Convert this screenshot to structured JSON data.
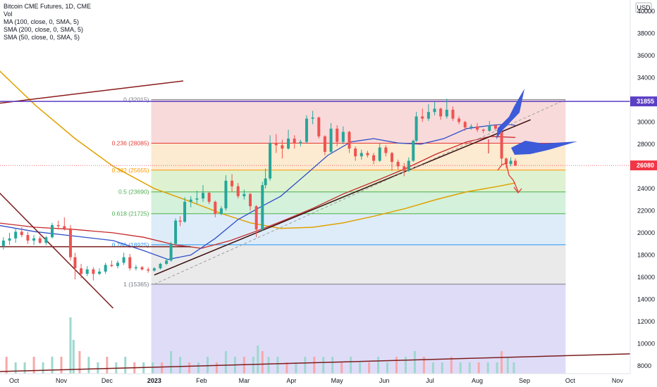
{
  "chart_data": {
    "type": "candlestick",
    "title": "Bitcoin CME Futures, 1D, CME",
    "legend": [
      "Vol",
      "MA (100, close, 0, SMA, 5)",
      "SMA (200, close, 0, SMA, 5)",
      "SMA (50, close, 0, SMA, 5)"
    ],
    "currency": "USD",
    "y_ticks": [
      8000,
      10000,
      12000,
      14000,
      16000,
      18000,
      20000,
      22000,
      24000,
      26000,
      28000,
      30000,
      32000,
      34000,
      36000,
      38000,
      40000
    ],
    "ylim": [
      7300,
      41000
    ],
    "x_ticks": [
      {
        "label": "Oct",
        "date": "2022-10-01"
      },
      {
        "label": "Nov",
        "date": "2022-11-01"
      },
      {
        "label": "Dec",
        "date": "2022-12-01"
      },
      {
        "label": "2023",
        "date": "2023-01-01",
        "bold": true
      },
      {
        "label": "Feb",
        "date": "2023-02-01"
      },
      {
        "label": "Mar",
        "date": "2023-03-01"
      },
      {
        "label": "Apr",
        "date": "2023-04-01"
      },
      {
        "label": "May",
        "date": "2023-05-01"
      },
      {
        "label": "Jun",
        "date": "2023-06-01"
      },
      {
        "label": "Jul",
        "date": "2023-07-01"
      },
      {
        "label": "Aug",
        "date": "2023-08-01"
      },
      {
        "label": "Sep",
        "date": "2023-09-01"
      },
      {
        "label": "Oct",
        "date": "2023-10-01"
      },
      {
        "label": "Nov",
        "date": "2023-11-01"
      }
    ],
    "price_labels": [
      {
        "value": 31855,
        "text": "31855",
        "color": "#5b3fc4"
      },
      {
        "value": 26080,
        "text": "26080",
        "color": "#f23645"
      }
    ],
    "fib_retracement": {
      "start": "2022-12-30",
      "end": "2023-09-28",
      "levels": [
        {
          "ratio": "0",
          "price": 32015,
          "label": "0 (32015)",
          "color": "#787b86",
          "fill": "#f7d4d4"
        },
        {
          "ratio": "0.236",
          "price": 28085,
          "label": "0.236 (28085)",
          "color": "#e53935",
          "fill": "#fce8c8"
        },
        {
          "ratio": "0.382",
          "price": 25655,
          "label": "0.382 (25655)",
          "color": "#ff9800",
          "fill": "#d8f0c9"
        },
        {
          "ratio": "0.5",
          "price": 23690,
          "label": "0.5 (23690)",
          "color": "#4caf50",
          "fill": "#cdeed5"
        },
        {
          "ratio": "0.618",
          "price": 21725,
          "label": "0.618 (21725)",
          "color": "#4caf50",
          "fill": "#d8e9f8"
        },
        {
          "ratio": "0.786",
          "price": 18925,
          "label": "0.786 (18925)",
          "color": "#2196f3",
          "fill": "#e6e6e6"
        },
        {
          "ratio": "1",
          "price": 15365,
          "label": "1 (15365)",
          "color": "#787b86",
          "fill": "#d9d6f7"
        }
      ]
    },
    "candles": [
      [
        "2022-09-20",
        19000,
        19500,
        18200,
        18800
      ],
      [
        "2022-09-24",
        18800,
        19600,
        18500,
        19300
      ],
      [
        "2022-09-28",
        19300,
        20000,
        18900,
        19500
      ],
      [
        "2022-10-02",
        19500,
        20400,
        19100,
        20100
      ],
      [
        "2022-10-06",
        20100,
        20500,
        19600,
        19800
      ],
      [
        "2022-10-10",
        19800,
        20100,
        19000,
        19300
      ],
      [
        "2022-10-14",
        19300,
        19800,
        18900,
        19500
      ],
      [
        "2022-10-18",
        19500,
        19700,
        19000,
        19100
      ],
      [
        "2022-10-22",
        19100,
        19700,
        18900,
        19600
      ],
      [
        "2022-10-26",
        19600,
        20900,
        19500,
        20700
      ],
      [
        "2022-10-30",
        20700,
        21100,
        20300,
        20600
      ],
      [
        "2022-11-03",
        20600,
        21400,
        20200,
        20400
      ],
      [
        "2022-11-07",
        20400,
        20700,
        17500,
        17800
      ],
      [
        "2022-11-10",
        17800,
        18200,
        15800,
        16800
      ],
      [
        "2022-11-14",
        16800,
        17200,
        15900,
        16300
      ],
      [
        "2022-11-18",
        16300,
        17000,
        16100,
        16700
      ],
      [
        "2022-11-22",
        16700,
        16900,
        15700,
        16300
      ],
      [
        "2022-11-26",
        16300,
        16800,
        16200,
        16500
      ],
      [
        "2022-11-30",
        16500,
        17300,
        16300,
        17100
      ],
      [
        "2022-12-04",
        17100,
        17500,
        16900,
        17000
      ],
      [
        "2022-12-08",
        17000,
        17500,
        16800,
        17300
      ],
      [
        "2022-12-12",
        17300,
        18200,
        17100,
        17800
      ],
      [
        "2022-12-16",
        17800,
        18100,
        16600,
        16800
      ],
      [
        "2022-12-20",
        16800,
        17100,
        16600,
        16900
      ],
      [
        "2022-12-24",
        16900,
        17000,
        16600,
        16700
      ],
      [
        "2022-12-28",
        16700,
        16900,
        16400,
        16600
      ],
      [
        "2023-01-01",
        16600,
        16900,
        16500,
        16800
      ],
      [
        "2023-01-05",
        16800,
        17300,
        16700,
        17200
      ],
      [
        "2023-01-09",
        17200,
        17700,
        17100,
        17500
      ],
      [
        "2023-01-12",
        17500,
        19200,
        17400,
        19000
      ],
      [
        "2023-01-15",
        19000,
        21300,
        18900,
        21100
      ],
      [
        "2023-01-18",
        21100,
        21500,
        20600,
        21000
      ],
      [
        "2023-01-21",
        21000,
        23200,
        20900,
        22800
      ],
      [
        "2023-01-25",
        22800,
        23300,
        22300,
        23000
      ],
      [
        "2023-01-29",
        23000,
        23800,
        22600,
        23100
      ],
      [
        "2023-02-02",
        23100,
        24300,
        22800,
        23600
      ],
      [
        "2023-02-06",
        23600,
        23700,
        22600,
        22800
      ],
      [
        "2023-02-10",
        22800,
        22900,
        21400,
        21700
      ],
      [
        "2023-02-14",
        21700,
        22400,
        21600,
        22200
      ],
      [
        "2023-02-17",
        22200,
        25200,
        22000,
        24700
      ],
      [
        "2023-02-21",
        24700,
        25300,
        23700,
        24200
      ],
      [
        "2023-02-25",
        24200,
        24500,
        23100,
        23300
      ],
      [
        "2023-03-01",
        23300,
        23900,
        23000,
        23500
      ],
      [
        "2023-03-05",
        23500,
        23600,
        22000,
        22400
      ],
      [
        "2023-03-09",
        22400,
        22500,
        19600,
        20300
      ],
      [
        "2023-03-13",
        20300,
        24600,
        20200,
        24300
      ],
      [
        "2023-03-15",
        24300,
        25800,
        24000,
        24900
      ],
      [
        "2023-03-18",
        24900,
        28800,
        24700,
        28100
      ],
      [
        "2023-03-22",
        28100,
        28900,
        27200,
        27900
      ],
      [
        "2023-03-26",
        27900,
        28400,
        26700,
        27600
      ],
      [
        "2023-03-30",
        27600,
        29300,
        27500,
        28500
      ],
      [
        "2023-04-03",
        28500,
        28800,
        27600,
        28100
      ],
      [
        "2023-04-07",
        28100,
        28400,
        27800,
        28200
      ],
      [
        "2023-04-11",
        28200,
        30600,
        28100,
        30300
      ],
      [
        "2023-04-15",
        30300,
        31000,
        29800,
        30400
      ],
      [
        "2023-04-19",
        30400,
        30500,
        28500,
        28700
      ],
      [
        "2023-04-23",
        28700,
        28800,
        27000,
        27300
      ],
      [
        "2023-04-27",
        27300,
        29900,
        27100,
        29400
      ],
      [
        "2023-05-01",
        29400,
        29700,
        27800,
        28200
      ],
      [
        "2023-05-05",
        28200,
        29600,
        28000,
        29100
      ],
      [
        "2023-05-09",
        29100,
        29200,
        27200,
        27600
      ],
      [
        "2023-05-13",
        27600,
        27800,
        26500,
        26900
      ],
      [
        "2023-05-17",
        26900,
        27500,
        26600,
        27200
      ],
      [
        "2023-05-21",
        27200,
        27400,
        26800,
        27000
      ],
      [
        "2023-05-25",
        27000,
        27200,
        26200,
        26500
      ],
      [
        "2023-05-29",
        26500,
        28100,
        26400,
        27700
      ],
      [
        "2023-06-02",
        27700,
        27900,
        26900,
        27200
      ],
      [
        "2023-06-06",
        27200,
        27300,
        25600,
        26400
      ],
      [
        "2023-06-10",
        26400,
        26600,
        25700,
        26000
      ],
      [
        "2023-06-14",
        26000,
        26300,
        25100,
        25600
      ],
      [
        "2023-06-17",
        25600,
        26800,
        25500,
        26500
      ],
      [
        "2023-06-20",
        26500,
        28400,
        26400,
        28300
      ],
      [
        "2023-06-22",
        28300,
        30900,
        28200,
        30500
      ],
      [
        "2023-06-26",
        30500,
        31200,
        30000,
        30300
      ],
      [
        "2023-06-30",
        30300,
        31600,
        30100,
        30900
      ],
      [
        "2023-07-04",
        30900,
        31800,
        30600,
        31200
      ],
      [
        "2023-07-08",
        31200,
        31300,
        30200,
        30500
      ],
      [
        "2023-07-12",
        30500,
        32100,
        30300,
        31100
      ],
      [
        "2023-07-16",
        31100,
        31400,
        30100,
        30300
      ],
      [
        "2023-07-20",
        30300,
        30500,
        29800,
        30000
      ],
      [
        "2023-07-24",
        30000,
        30100,
        29200,
        29500
      ],
      [
        "2023-07-28",
        29500,
        29800,
        29300,
        29600
      ],
      [
        "2023-08-01",
        29600,
        29900,
        29100,
        29300
      ],
      [
        "2023-08-05",
        29300,
        29400,
        29000,
        29200
      ],
      [
        "2023-08-09",
        29200,
        30100,
        29100,
        29700
      ],
      [
        "2023-08-13",
        29700,
        29800,
        29200,
        29400
      ],
      [
        "2023-08-16",
        29400,
        29500,
        28900,
        29100
      ],
      [
        "2023-08-17",
        29100,
        29200,
        26000,
        26700
      ],
      [
        "2023-08-20",
        26700,
        26800,
        25800,
        26200
      ],
      [
        "2023-08-23",
        26200,
        26800,
        26000,
        26500
      ],
      [
        "2023-08-26",
        26500,
        26700,
        26000,
        26080
      ]
    ],
    "sma50": [
      [
        "2022-09-20",
        20700
      ],
      [
        "2022-10-15",
        20100
      ],
      [
        "2022-11-10",
        19700
      ],
      [
        "2022-12-05",
        19300
      ],
      [
        "2022-12-25",
        18400
      ],
      [
        "2023-01-10",
        17600
      ],
      [
        "2023-01-25",
        18000
      ],
      [
        "2023-02-10",
        19500
      ],
      [
        "2023-02-25",
        21200
      ],
      [
        "2023-03-10",
        22200
      ],
      [
        "2023-03-25",
        23300
      ],
      [
        "2023-04-10",
        25200
      ],
      [
        "2023-04-25",
        27000
      ],
      [
        "2023-05-10",
        28200
      ],
      [
        "2023-05-25",
        28500
      ],
      [
        "2023-06-10",
        28100
      ],
      [
        "2023-06-25",
        28000
      ],
      [
        "2023-07-10",
        28500
      ],
      [
        "2023-07-25",
        29400
      ],
      [
        "2023-08-10",
        29700
      ],
      [
        "2023-08-20",
        29800
      ],
      [
        "2023-08-26",
        29700
      ]
    ],
    "ma100": [
      [
        "2022-09-20",
        20900
      ],
      [
        "2022-10-15",
        20500
      ],
      [
        "2022-11-10",
        20300
      ],
      [
        "2022-12-05",
        20000
      ],
      [
        "2022-12-25",
        19600
      ],
      [
        "2023-01-15",
        18900
      ],
      [
        "2023-02-01",
        18600
      ],
      [
        "2023-02-20",
        19300
      ],
      [
        "2023-03-10",
        20200
      ],
      [
        "2023-03-25",
        21000
      ],
      [
        "2023-04-15",
        22200
      ],
      [
        "2023-05-05",
        23500
      ],
      [
        "2023-05-25",
        24600
      ],
      [
        "2023-06-15",
        25800
      ],
      [
        "2023-07-05",
        27100
      ],
      [
        "2023-07-25",
        28200
      ],
      [
        "2023-08-10",
        28700
      ],
      [
        "2023-08-26",
        28600
      ]
    ],
    "sma200": [
      [
        "2022-09-20",
        34800
      ],
      [
        "2022-10-15",
        31500
      ],
      [
        "2022-11-10",
        28500
      ],
      [
        "2022-12-05",
        26000
      ],
      [
        "2023-01-01",
        24000
      ],
      [
        "2023-01-25",
        22800
      ],
      [
        "2023-02-15",
        21700
      ],
      [
        "2023-03-05",
        20900
      ],
      [
        "2023-03-25",
        20400
      ],
      [
        "2023-04-15",
        20500
      ],
      [
        "2023-05-05",
        20900
      ],
      [
        "2023-05-25",
        21500
      ],
      [
        "2023-06-15",
        22200
      ],
      [
        "2023-07-05",
        23000
      ],
      [
        "2023-07-25",
        23700
      ],
      [
        "2023-08-15",
        24200
      ],
      [
        "2023-08-26",
        24500
      ]
    ],
    "volume": [
      [
        "2022-09-20",
        2
      ],
      [
        "2022-09-26",
        3
      ],
      [
        "2022-10-02",
        2
      ],
      [
        "2022-10-08",
        2
      ],
      [
        "2022-10-14",
        3
      ],
      [
        "2022-10-20",
        2
      ],
      [
        "2022-10-26",
        3
      ],
      [
        "2022-11-01",
        3
      ],
      [
        "2022-11-07",
        10
      ],
      [
        "2022-11-09",
        6
      ],
      [
        "2022-11-13",
        4
      ],
      [
        "2022-11-19",
        3
      ],
      [
        "2022-11-25",
        2
      ],
      [
        "2022-12-01",
        3
      ],
      [
        "2022-12-07",
        2
      ],
      [
        "2022-12-13",
        3
      ],
      [
        "2022-12-19",
        2
      ],
      [
        "2022-12-25",
        2
      ],
      [
        "2022-12-31",
        2
      ],
      [
        "2023-01-06",
        2
      ],
      [
        "2023-01-12",
        4
      ],
      [
        "2023-01-18",
        3
      ],
      [
        "2023-01-24",
        2
      ],
      [
        "2023-01-30",
        2
      ],
      [
        "2023-02-05",
        3
      ],
      [
        "2023-02-11",
        2
      ],
      [
        "2023-02-17",
        4
      ],
      [
        "2023-02-23",
        3
      ],
      [
        "2023-03-01",
        3
      ],
      [
        "2023-03-07",
        3
      ],
      [
        "2023-03-10",
        5
      ],
      [
        "2023-03-13",
        4
      ],
      [
        "2023-03-17",
        3
      ],
      [
        "2023-03-23",
        3
      ],
      [
        "2023-03-29",
        2
      ],
      [
        "2023-04-04",
        2
      ],
      [
        "2023-04-10",
        3
      ],
      [
        "2023-04-16",
        3
      ],
      [
        "2023-04-22",
        3
      ],
      [
        "2023-04-28",
        3
      ],
      [
        "2023-05-04",
        2
      ],
      [
        "2023-05-10",
        3
      ],
      [
        "2023-05-16",
        2
      ],
      [
        "2023-05-22",
        2
      ],
      [
        "2023-05-28",
        3
      ],
      [
        "2023-06-03",
        2
      ],
      [
        "2023-06-09",
        3
      ],
      [
        "2023-06-15",
        3
      ],
      [
        "2023-06-21",
        4
      ],
      [
        "2023-06-27",
        3
      ],
      [
        "2023-07-03",
        2
      ],
      [
        "2023-07-09",
        2
      ],
      [
        "2023-07-15",
        3
      ],
      [
        "2023-07-21",
        2
      ],
      [
        "2023-07-27",
        2
      ],
      [
        "2023-08-02",
        2
      ],
      [
        "2023-08-08",
        2
      ],
      [
        "2023-08-14",
        2
      ],
      [
        "2023-08-17",
        4
      ],
      [
        "2023-08-21",
        3
      ],
      [
        "2023-08-25",
        2
      ]
    ],
    "trendlines": [
      {
        "name": "support-trendline",
        "color": "#3a0d0d",
        "from": [
          "2023-01-01",
          16200
        ],
        "to": [
          "2023-09-05",
          30200
        ]
      },
      {
        "name": "projection-dashed",
        "color": "#9e9e9e",
        "dashed": true,
        "from": [
          "2023-01-01",
          15365
        ],
        "to": [
          "2023-09-28",
          32015
        ]
      },
      {
        "name": "descending-trendline",
        "color": "#7b1d1d",
        "from": [
          "2022-09-15",
          24500
        ],
        "to": [
          "2022-12-05",
          13200
        ]
      },
      {
        "name": "upper-left-trendline",
        "color": "#8b1a1a",
        "from": [
          "2022-09-10",
          31500
        ],
        "to": [
          "2023-01-20",
          33700
        ]
      },
      {
        "name": "horizontal-resistance",
        "color": "#7b1d1d",
        "from": [
          "2022-09-10",
          18750
        ],
        "to": [
          "2023-01-25",
          18750
        ]
      },
      {
        "name": "horizontal-high",
        "color": "#5b3fc4",
        "from": [
          "2022-09-10",
          31855
        ],
        "to": [
          "2023-11-20",
          31855
        ]
      }
    ],
    "annotations": [
      {
        "name": "arrow-upper",
        "color": "#3d5bd9"
      },
      {
        "name": "arrow-lower",
        "color": "#3d5bd9"
      },
      {
        "name": "forecast-path",
        "color": "#e53935"
      }
    ]
  }
}
